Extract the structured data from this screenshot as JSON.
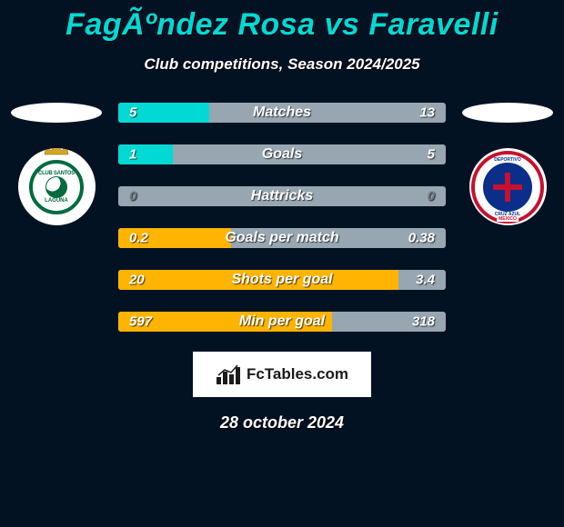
{
  "colors": {
    "page_bg": "#031223",
    "title": "#00d9d4",
    "bar_track": "#97a6b0",
    "text": "#ffffff",
    "brand_box_bg": "#ffffff",
    "brand_text": "#1a1a1a"
  },
  "title": "FagÃºndez Rosa vs Faravelli",
  "subtitle": "Club competitions, Season 2024/2025",
  "player_left": {
    "club_primary": "#006b3f",
    "club_secondary": "#ffffff",
    "crown_color": "#d4a628"
  },
  "player_right": {
    "club_ring": "#c8102e",
    "club_inner": "#0a2e8a",
    "club_bg": "#ffffff"
  },
  "bars": [
    {
      "label": "Matches",
      "left": "5",
      "right": "13",
      "fill_pct": 27.8,
      "fill_color": "#00d9d4",
      "left_text_color": "#ffffff",
      "right_text_color": "#ffffff"
    },
    {
      "label": "Goals",
      "left": "1",
      "right": "5",
      "fill_pct": 16.7,
      "fill_color": "#00d9d4",
      "left_text_color": "#ffffff",
      "right_text_color": "#ffffff"
    },
    {
      "label": "Hattricks",
      "left": "0",
      "right": "0",
      "fill_pct": 0,
      "fill_color": "#00d9d4",
      "left_text_color": "#707b83",
      "right_text_color": "#707b83"
    },
    {
      "label": "Goals per match",
      "left": "0.2",
      "right": "0.38",
      "fill_pct": 34.5,
      "fill_color": "#feb400",
      "left_text_color": "#ffffff",
      "right_text_color": "#ffffff"
    },
    {
      "label": "Shots per goal",
      "left": "20",
      "right": "3.4",
      "fill_pct": 85.5,
      "fill_color": "#feb400",
      "left_text_color": "#ffffff",
      "right_text_color": "#ffffff"
    },
    {
      "label": "Min per goal",
      "left": "597",
      "right": "318",
      "fill_pct": 65.2,
      "fill_color": "#feb400",
      "left_text_color": "#ffffff",
      "right_text_color": "#ffffff"
    }
  ],
  "brand": {
    "name": "FcTables.com"
  },
  "date": "28 october 2024"
}
